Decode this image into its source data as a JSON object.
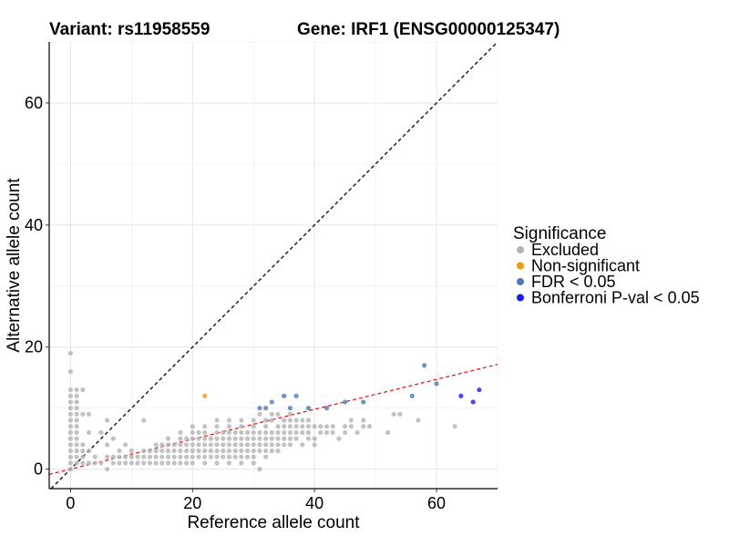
{
  "chart_data": {
    "type": "scatter",
    "title_left": "Variant: rs11958559",
    "title_right": "Gene: IRF1 (ENSG00000125347)",
    "xlabel": "Reference allele count",
    "ylabel": "Alternative allele count",
    "xlim": [
      -3.5,
      70
    ],
    "ylim": [
      -3.2,
      70
    ],
    "xticks": [
      0,
      20,
      40,
      60
    ],
    "yticks": [
      0,
      20,
      40,
      60
    ],
    "grid": true,
    "reference_line": {
      "label": "y = x",
      "style": "dashed",
      "color": "#000000",
      "intercept": 0,
      "slope": 1
    },
    "fit_line": {
      "style": "dashed",
      "color": "#e41a1c",
      "intercept": 0,
      "slope": 0.245
    },
    "legend": {
      "title": "Significance",
      "entries": [
        {
          "label": "Excluded",
          "color": "#b3b3b3"
        },
        {
          "label": "Non-significant",
          "color": "#f39c12"
        },
        {
          "label": "FDR < 0.05",
          "color": "#4a7ab8"
        },
        {
          "label": "Bonferroni P-val < 0.05",
          "color": "#1a1aee"
        }
      ]
    },
    "series": [
      {
        "name": "Excluded",
        "color": "#b3b3b3",
        "points": [
          [
            0,
            19
          ],
          [
            0,
            16
          ],
          [
            0,
            13
          ],
          [
            0,
            12
          ],
          [
            0,
            11
          ],
          [
            0,
            10
          ],
          [
            0,
            9
          ],
          [
            0,
            8
          ],
          [
            0,
            7
          ],
          [
            0,
            6
          ],
          [
            0,
            5
          ],
          [
            0,
            4
          ],
          [
            0,
            3
          ],
          [
            0,
            2
          ],
          [
            0,
            1
          ],
          [
            0,
            0
          ],
          [
            1,
            13
          ],
          [
            1,
            12
          ],
          [
            1,
            11
          ],
          [
            1,
            10
          ],
          [
            1,
            9
          ],
          [
            1,
            8
          ],
          [
            1,
            7
          ],
          [
            1,
            6
          ],
          [
            1,
            5
          ],
          [
            1,
            4
          ],
          [
            1,
            3
          ],
          [
            1,
            2
          ],
          [
            1,
            1
          ],
          [
            2,
            13
          ],
          [
            2,
            9
          ],
          [
            2,
            4
          ],
          [
            2,
            3
          ],
          [
            2,
            2
          ],
          [
            2,
            1
          ],
          [
            3,
            9
          ],
          [
            3,
            6
          ],
          [
            3,
            3
          ],
          [
            3,
            1
          ],
          [
            4,
            2
          ],
          [
            4,
            1
          ],
          [
            5,
            6
          ],
          [
            5,
            1
          ],
          [
            6,
            8
          ],
          [
            6,
            4
          ],
          [
            6,
            2
          ],
          [
            6,
            0
          ],
          [
            7,
            5
          ],
          [
            7,
            2
          ],
          [
            7,
            1
          ],
          [
            8,
            3
          ],
          [
            8,
            2
          ],
          [
            8,
            1
          ],
          [
            9,
            4
          ],
          [
            9,
            2
          ],
          [
            9,
            1
          ],
          [
            10,
            3
          ],
          [
            10,
            2
          ],
          [
            10,
            1
          ],
          [
            11,
            2
          ],
          [
            11,
            1
          ],
          [
            12,
            8
          ],
          [
            12,
            3
          ],
          [
            12,
            2
          ],
          [
            12,
            1
          ],
          [
            13,
            3
          ],
          [
            13,
            2
          ],
          [
            13,
            1
          ],
          [
            14,
            4
          ],
          [
            14,
            3
          ],
          [
            14,
            2
          ],
          [
            14,
            1
          ],
          [
            15,
            4
          ],
          [
            15,
            3
          ],
          [
            15,
            2
          ],
          [
            15,
            1
          ],
          [
            16,
            5
          ],
          [
            16,
            4
          ],
          [
            16,
            3
          ],
          [
            16,
            2
          ],
          [
            16,
            1
          ],
          [
            17,
            4
          ],
          [
            17,
            3
          ],
          [
            17,
            2
          ],
          [
            17,
            1
          ],
          [
            18,
            6
          ],
          [
            18,
            5
          ],
          [
            18,
            4
          ],
          [
            18,
            3
          ],
          [
            18,
            2
          ],
          [
            18,
            1
          ],
          [
            19,
            5
          ],
          [
            19,
            4
          ],
          [
            19,
            3
          ],
          [
            19,
            2
          ],
          [
            19,
            1
          ],
          [
            20,
            7
          ],
          [
            20,
            6
          ],
          [
            20,
            5
          ],
          [
            20,
            4
          ],
          [
            20,
            3
          ],
          [
            20,
            2
          ],
          [
            20,
            1
          ],
          [
            21,
            6
          ],
          [
            21,
            5
          ],
          [
            21,
            4
          ],
          [
            21,
            3
          ],
          [
            21,
            2
          ],
          [
            22,
            7
          ],
          [
            22,
            6
          ],
          [
            22,
            5
          ],
          [
            22,
            4
          ],
          [
            22,
            3
          ],
          [
            22,
            2
          ],
          [
            22,
            1
          ],
          [
            23,
            5
          ],
          [
            23,
            4
          ],
          [
            23,
            3
          ],
          [
            23,
            2
          ],
          [
            24,
            8
          ],
          [
            24,
            7
          ],
          [
            24,
            6
          ],
          [
            24,
            5
          ],
          [
            24,
            4
          ],
          [
            24,
            3
          ],
          [
            24,
            2
          ],
          [
            24,
            1
          ],
          [
            25,
            6
          ],
          [
            25,
            5
          ],
          [
            25,
            4
          ],
          [
            25,
            3
          ],
          [
            25,
            2
          ],
          [
            26,
            8
          ],
          [
            26,
            7
          ],
          [
            26,
            6
          ],
          [
            26,
            5
          ],
          [
            26,
            4
          ],
          [
            26,
            3
          ],
          [
            26,
            2
          ],
          [
            26,
            1
          ],
          [
            27,
            6
          ],
          [
            27,
            5
          ],
          [
            27,
            4
          ],
          [
            27,
            3
          ],
          [
            27,
            2
          ],
          [
            28,
            8
          ],
          [
            28,
            7
          ],
          [
            28,
            6
          ],
          [
            28,
            5
          ],
          [
            28,
            4
          ],
          [
            28,
            3
          ],
          [
            28,
            2
          ],
          [
            28,
            1
          ],
          [
            29,
            6
          ],
          [
            29,
            5
          ],
          [
            29,
            4
          ],
          [
            29,
            3
          ],
          [
            29,
            2
          ],
          [
            30,
            8
          ],
          [
            30,
            7
          ],
          [
            30,
            6
          ],
          [
            30,
            5
          ],
          [
            30,
            4
          ],
          [
            30,
            3
          ],
          [
            30,
            2
          ],
          [
            30,
            1
          ],
          [
            31,
            9
          ],
          [
            31,
            6
          ],
          [
            31,
            5
          ],
          [
            31,
            4
          ],
          [
            31,
            3
          ],
          [
            31,
            0
          ],
          [
            32,
            8
          ],
          [
            32,
            7
          ],
          [
            32,
            6
          ],
          [
            32,
            5
          ],
          [
            32,
            4
          ],
          [
            32,
            3
          ],
          [
            32,
            2
          ],
          [
            33,
            9
          ],
          [
            33,
            8
          ],
          [
            33,
            6
          ],
          [
            33,
            5
          ],
          [
            33,
            4
          ],
          [
            33,
            3
          ],
          [
            34,
            9
          ],
          [
            34,
            7
          ],
          [
            34,
            6
          ],
          [
            34,
            5
          ],
          [
            34,
            4
          ],
          [
            34,
            3
          ],
          [
            35,
            8
          ],
          [
            35,
            7
          ],
          [
            35,
            6
          ],
          [
            35,
            5
          ],
          [
            35,
            4
          ],
          [
            36,
            9
          ],
          [
            36,
            8
          ],
          [
            36,
            7
          ],
          [
            36,
            6
          ],
          [
            36,
            5
          ],
          [
            36,
            4
          ],
          [
            37,
            8
          ],
          [
            37,
            7
          ],
          [
            37,
            6
          ],
          [
            37,
            5
          ],
          [
            38,
            8
          ],
          [
            38,
            7
          ],
          [
            38,
            6
          ],
          [
            38,
            4
          ],
          [
            39,
            8
          ],
          [
            39,
            7
          ],
          [
            39,
            6
          ],
          [
            39,
            5
          ],
          [
            40,
            7
          ],
          [
            40,
            5
          ],
          [
            40,
            4
          ],
          [
            41,
            7
          ],
          [
            41,
            6
          ],
          [
            42,
            7
          ],
          [
            42,
            6
          ],
          [
            43,
            7
          ],
          [
            43,
            6
          ],
          [
            44,
            5
          ],
          [
            45,
            7
          ],
          [
            45,
            6
          ],
          [
            46,
            8
          ],
          [
            46,
            7
          ],
          [
            47,
            6
          ],
          [
            48,
            8
          ],
          [
            48,
            7
          ],
          [
            49,
            7
          ],
          [
            52,
            6
          ],
          [
            53,
            9
          ],
          [
            54,
            9
          ],
          [
            57,
            8
          ],
          [
            63,
            7
          ]
        ]
      },
      {
        "name": "Non-significant",
        "color": "#f39c12",
        "points": [
          [
            22,
            12
          ]
        ]
      },
      {
        "name": "FDR < 0.05",
        "color": "#4a7ab8",
        "points": [
          [
            31,
            10
          ],
          [
            32,
            10
          ],
          [
            33,
            11
          ],
          [
            35,
            12
          ],
          [
            36,
            10
          ],
          [
            37,
            12
          ],
          [
            39,
            10
          ],
          [
            42,
            10
          ],
          [
            45,
            11
          ],
          [
            48,
            11
          ],
          [
            56,
            12
          ],
          [
            58,
            17
          ],
          [
            60,
            14
          ]
        ]
      },
      {
        "name": "Bonferroni P-val < 0.05",
        "color": "#1a1aee",
        "points": [
          [
            64,
            12
          ],
          [
            66,
            11
          ],
          [
            67,
            13
          ]
        ]
      }
    ]
  }
}
